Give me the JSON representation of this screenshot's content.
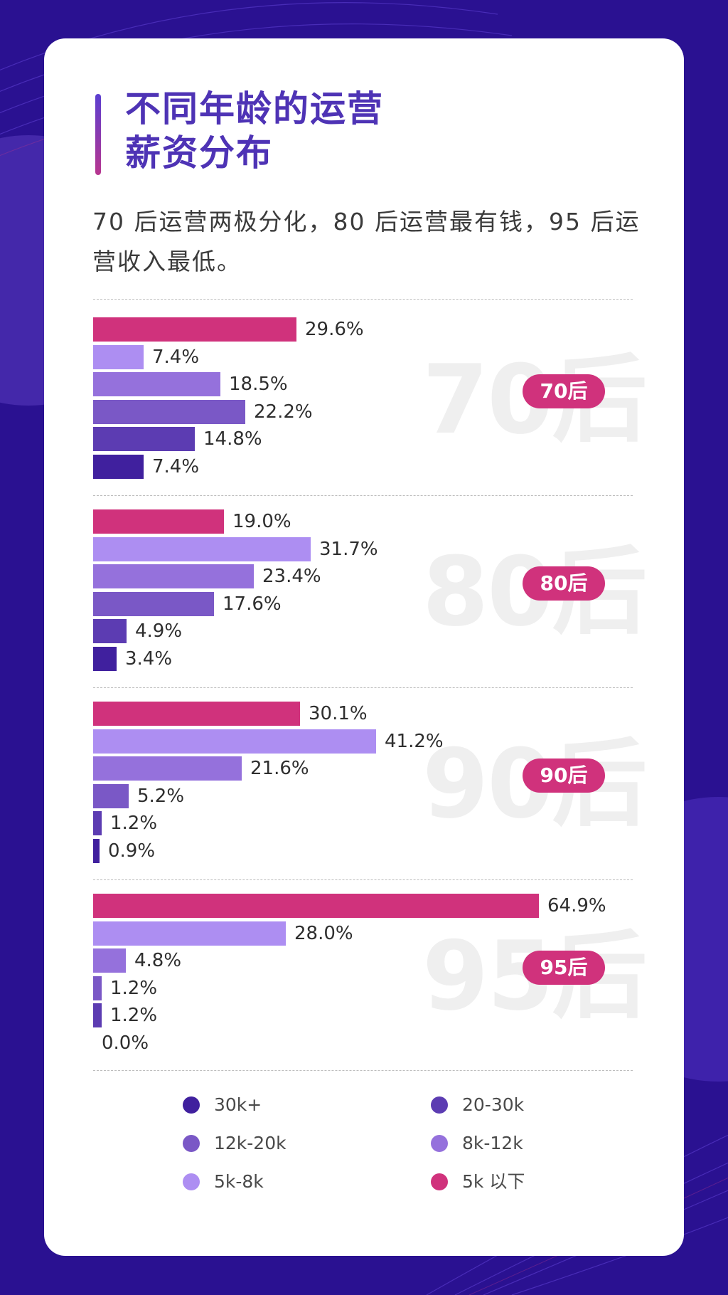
{
  "title_lines": [
    "不同年龄的运营",
    "薪资分布"
  ],
  "subtitle": "70 后运营两极分化，80 后运营最有钱，95 后运营收入最低。",
  "colors": {
    "background": "#2a1191",
    "card": "#ffffff",
    "title": "#4e33b5",
    "badge": "#d0327c"
  },
  "chart_data": {
    "type": "bar",
    "orientation": "horizontal",
    "unit": "%",
    "xlim": [
      0,
      64.9
    ],
    "legend_placement": "bottom",
    "series": [
      {
        "name": "5k 以下",
        "color": "#d0327c"
      },
      {
        "name": "5k-8k",
        "color": "#ad8ef2"
      },
      {
        "name": "8k-12k",
        "color": "#9571dc"
      },
      {
        "name": "12k-20k",
        "color": "#7a58c6"
      },
      {
        "name": "20-30k",
        "color": "#5c3cb2"
      },
      {
        "name": "30k+",
        "color": "#40209e"
      }
    ],
    "groups": [
      {
        "label": "70后",
        "year": "70后",
        "values": [
          29.6,
          7.4,
          18.5,
          22.2,
          14.8,
          7.4
        ],
        "labels": [
          "29.6%",
          "7.4%",
          "18.5%",
          "22.2%",
          "14.8%",
          "7.4%"
        ]
      },
      {
        "label": "80后",
        "year": "80后",
        "values": [
          19.0,
          31.7,
          23.4,
          17.6,
          4.9,
          3.4
        ],
        "labels": [
          "19.0%",
          "31.7%",
          "23.4%",
          "17.6%",
          "4.9%",
          "3.4%"
        ]
      },
      {
        "label": "90后",
        "year": "90后",
        "values": [
          30.1,
          41.2,
          21.6,
          5.2,
          1.2,
          0.9
        ],
        "labels": [
          "30.1%",
          "41.2%",
          "21.6%",
          "5.2%",
          "1.2%",
          "0.9%"
        ]
      },
      {
        "label": "95后",
        "year": "95后",
        "values": [
          64.9,
          28.0,
          4.8,
          1.2,
          1.2,
          0.0
        ],
        "labels": [
          "64.9%",
          "28.0%",
          "4.8%",
          "1.2%",
          "1.2%",
          "0.0%"
        ]
      }
    ],
    "legend": [
      {
        "label": "30k+",
        "color": "#40209e"
      },
      {
        "label": "20-30k",
        "color": "#5c3cb2"
      },
      {
        "label": "12k-20k",
        "color": "#7a58c6"
      },
      {
        "label": "8k-12k",
        "color": "#9571dc"
      },
      {
        "label": "5k-8k",
        "color": "#ad8ef2"
      },
      {
        "label": "5k 以下",
        "color": "#d0327c"
      }
    ]
  }
}
